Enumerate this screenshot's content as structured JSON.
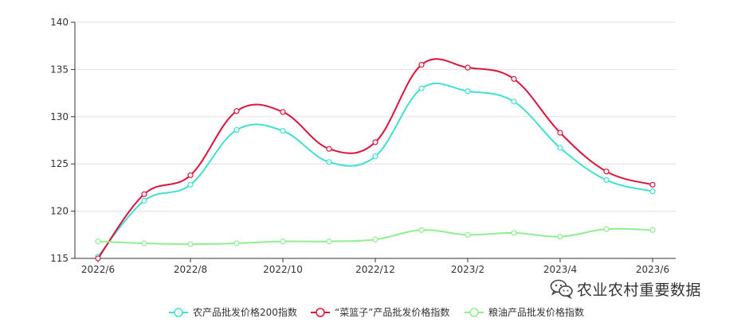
{
  "chart_data": {
    "type": "line",
    "smooth": true,
    "categories": [
      "2022/6",
      "2022/7",
      "2022/8",
      "2022/9",
      "2022/10",
      "2022/11",
      "2022/12",
      "2023/1",
      "2023/2",
      "2023/3",
      "2023/4",
      "2023/5",
      "2023/6"
    ],
    "x_tick_labels": [
      "2022/6",
      "2022/8",
      "2022/10",
      "2022/12",
      "2023/2",
      "2023/4",
      "2023/6"
    ],
    "x_tick_indices": [
      0,
      2,
      4,
      6,
      8,
      10,
      12
    ],
    "ylim": [
      115,
      140
    ],
    "y_ticks": [
      115,
      120,
      125,
      130,
      135,
      140
    ],
    "grid": {
      "horizontal": true,
      "vertical": false
    },
    "legend_position": "bottom-center",
    "series": [
      {
        "name": "农产品批发价格200指数",
        "color": "#40e0d0",
        "values": [
          115.2,
          121.1,
          122.8,
          128.6,
          128.5,
          125.2,
          125.8,
          133.0,
          132.7,
          131.6,
          126.7,
          123.3,
          122.1
        ]
      },
      {
        "name": "“菜篮子”产品批发价格指数",
        "color": "#dc143c",
        "values": [
          115.0,
          121.8,
          123.8,
          130.6,
          130.5,
          126.6,
          127.3,
          135.5,
          135.2,
          134.0,
          128.3,
          124.2,
          122.8
        ]
      },
      {
        "name": "粮油产品批发价格指数",
        "color": "#90ee90",
        "values": [
          116.8,
          116.6,
          116.5,
          116.6,
          116.8,
          116.8,
          117.0,
          118.0,
          117.5,
          117.7,
          117.3,
          118.1,
          118.0
        ]
      }
    ]
  },
  "watermark": {
    "text": "农业农村重要数据",
    "icon": "wechat-icon"
  }
}
